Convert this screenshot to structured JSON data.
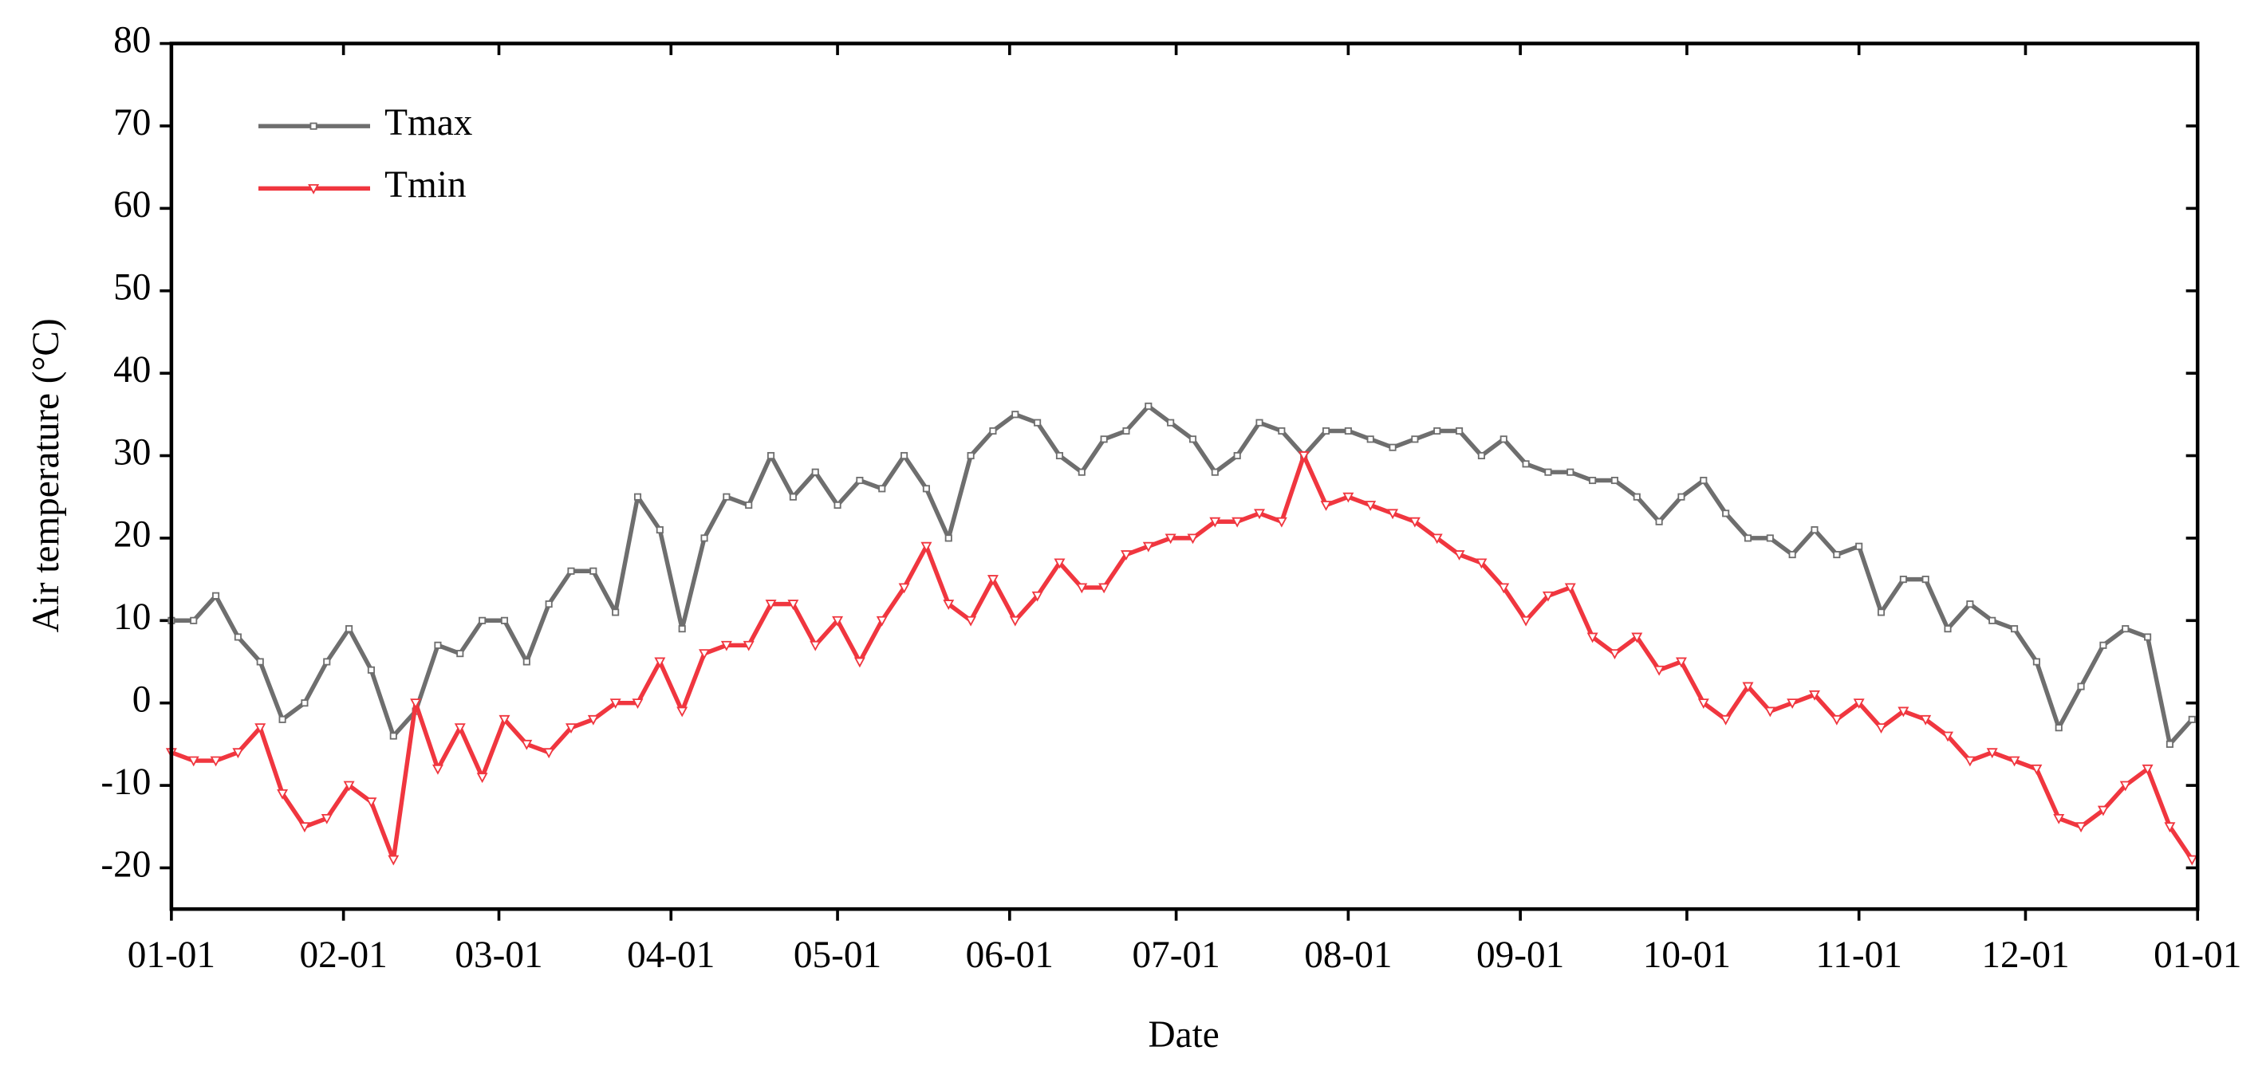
{
  "chart_data": {
    "type": "line",
    "x_label": "Date",
    "y_label": "Air temperature (°C)",
    "x": [
      0,
      4,
      8,
      12,
      16,
      20,
      24,
      28,
      32,
      36,
      40,
      44,
      48,
      52,
      56,
      60,
      64,
      68,
      72,
      76,
      80,
      84,
      88,
      92,
      96,
      100,
      104,
      108,
      112,
      116,
      120,
      124,
      128,
      132,
      136,
      140,
      144,
      148,
      152,
      156,
      160,
      164,
      168,
      172,
      176,
      180,
      184,
      188,
      192,
      196,
      200,
      204,
      208,
      212,
      216,
      220,
      224,
      228,
      232,
      236,
      240,
      244,
      248,
      252,
      256,
      260,
      264,
      268,
      272,
      276,
      280,
      284,
      288,
      292,
      296,
      300,
      304,
      308,
      312,
      316,
      320,
      324,
      328,
      332,
      336,
      340,
      344,
      348,
      352,
      356,
      360,
      364
    ],
    "series": [
      {
        "name": "Tmax",
        "color": "#6e6e6e",
        "marker": "square",
        "values": [
          10,
          10,
          13,
          8,
          5,
          -2,
          0,
          5,
          9,
          4,
          -4,
          -1,
          7,
          6,
          10,
          10,
          5,
          12,
          16,
          16,
          11,
          25,
          21,
          9,
          20,
          25,
          24,
          30,
          25,
          28,
          24,
          27,
          26,
          30,
          26,
          20,
          30,
          33,
          35,
          34,
          30,
          28,
          32,
          33,
          36,
          34,
          32,
          28,
          30,
          34,
          33,
          30,
          33,
          33,
          32,
          31,
          32,
          33,
          33,
          30,
          32,
          29,
          28,
          28,
          27,
          27,
          25,
          22,
          25,
          27,
          23,
          20,
          20,
          18,
          21,
          18,
          19,
          11,
          15,
          15,
          9,
          12,
          10,
          9,
          5,
          -3,
          2,
          7,
          9,
          8,
          -5,
          -2
        ]
      },
      {
        "name": "Tmin",
        "color": "#f0363f",
        "marker": "triangle-down",
        "values": [
          -6,
          -7,
          -7,
          -6,
          -3,
          -11,
          -15,
          -14,
          -10,
          -12,
          -19,
          0,
          -8,
          -3,
          -9,
          -2,
          -5,
          -6,
          -3,
          -2,
          0,
          0,
          5,
          -1,
          6,
          7,
          7,
          12,
          12,
          7,
          10,
          5,
          10,
          14,
          19,
          12,
          10,
          15,
          10,
          13,
          17,
          14,
          14,
          18,
          19,
          20,
          20,
          22,
          22,
          23,
          22,
          30,
          24,
          25,
          24,
          23,
          22,
          20,
          18,
          17,
          14,
          10,
          13,
          14,
          8,
          6,
          8,
          4,
          5,
          0,
          -2,
          2,
          -1,
          0,
          1,
          -2,
          0,
          -3,
          -1,
          -2,
          -4,
          -7,
          -6,
          -7,
          -8,
          -14,
          -15,
          -13,
          -10,
          -8,
          -15,
          -19
        ]
      }
    ],
    "xlim": [
      0,
      365
    ],
    "xticks": [
      {
        "value": 0,
        "label": "01-01"
      },
      {
        "value": 31,
        "label": "02-01"
      },
      {
        "value": 59,
        "label": "03-01"
      },
      {
        "value": 90,
        "label": "04-01"
      },
      {
        "value": 120,
        "label": "05-01"
      },
      {
        "value": 151,
        "label": "06-01"
      },
      {
        "value": 181,
        "label": "07-01"
      },
      {
        "value": 212,
        "label": "08-01"
      },
      {
        "value": 243,
        "label": "09-01"
      },
      {
        "value": 273,
        "label": "10-01"
      },
      {
        "value": 304,
        "label": "11-01"
      },
      {
        "value": 334,
        "label": "12-01"
      },
      {
        "value": 365,
        "label": "01-01"
      }
    ],
    "ylim": [
      -25,
      80
    ],
    "yticks": [
      -20,
      -10,
      0,
      10,
      20,
      30,
      40,
      50,
      60,
      70,
      80
    ],
    "grid": false,
    "legend": "upper left"
  }
}
